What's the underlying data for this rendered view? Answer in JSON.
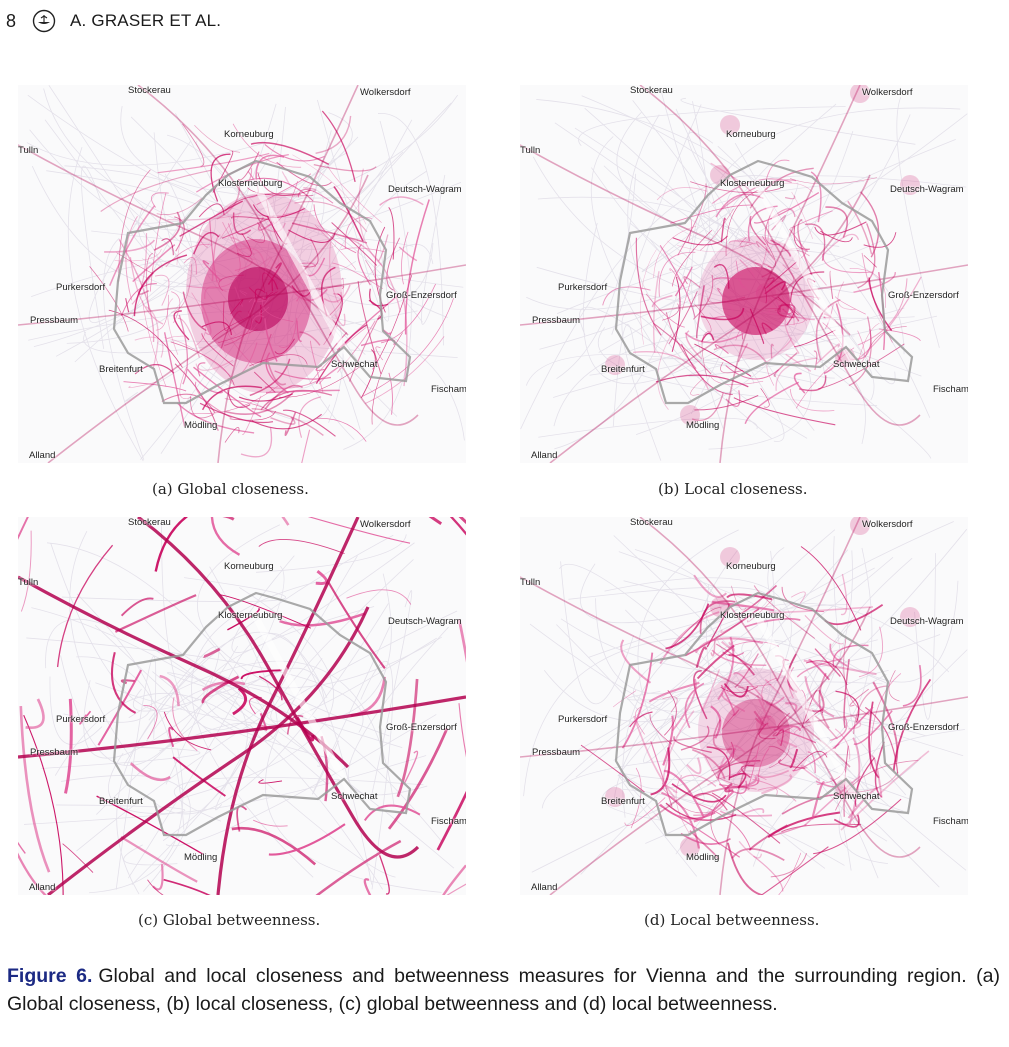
{
  "header": {
    "page_number": "8",
    "running_author": "A. GRASER ET AL."
  },
  "colors": {
    "accent_magenta": "#c8005a",
    "boundary_gray": "#9a9a9a",
    "caption_label_blue": "#1c2a84"
  },
  "place_names": [
    "Stockerau",
    "Wolkersdorf",
    "Korneuburg",
    "Tulln",
    "Klosterneuburg",
    "Deutsch-Wagram",
    "Purkersdorf",
    "Groß-Enzersdorf",
    "Pressbaum",
    "Schwechat",
    "Breitenfurt",
    "Fischamend",
    "Mödling",
    "Alland"
  ],
  "panels": [
    {
      "id": "a",
      "subcaption": "(a)  Global closeness."
    },
    {
      "id": "b",
      "subcaption": "(b)  Local closeness."
    },
    {
      "id": "c",
      "subcaption": "(c)  Global betweenness."
    },
    {
      "id": "d",
      "subcaption": "(d)  Local betweenness."
    }
  ],
  "caption": {
    "label": "Figure 6.",
    "text": "Global and local closeness and betweenness measures for Vienna and the surrounding region. (a) Global closeness, (b) local closeness, (c) global betweenness and (d) local betweenness."
  }
}
